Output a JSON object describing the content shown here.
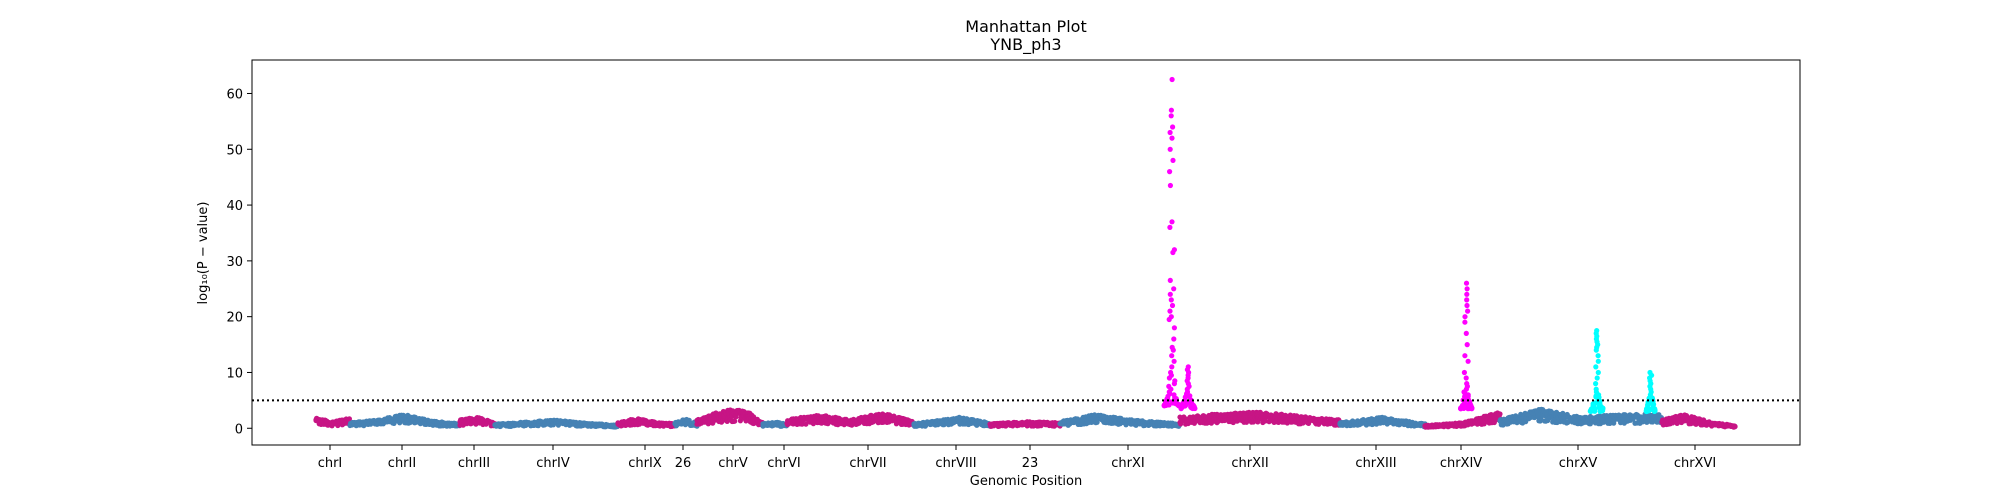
{
  "chart_data": {
    "type": "scatter",
    "title": "Manhattan Plot",
    "subtitle": "YNB_ph3",
    "xlabel": "Genomic Position",
    "ylabel": "log₁₀(P − value)",
    "ylim": [
      -3,
      66
    ],
    "yticks": [
      0,
      10,
      20,
      30,
      40,
      50,
      60
    ],
    "threshold": 5,
    "grid": false,
    "legend": "none",
    "colors": {
      "steel": "#4682b4",
      "crimson": "#c71585",
      "magenta": "#ff00ff",
      "cyan": "#00ffff",
      "threshold_line": "#000000"
    },
    "x_tick_labels": [
      "chrI",
      "chrII",
      "chrIII",
      "chrIV",
      "chrIX",
      "26",
      "chrV",
      "chrVI",
      "chrVII",
      "chrVIII",
      "23",
      "chrXI",
      "chrXII",
      "chrXIII",
      "chrXIV",
      "chrXV",
      "chrXVI"
    ],
    "segments": [
      {
        "label": "chrI",
        "color": "crimson",
        "profile": [
          [
            0,
            1.8
          ],
          [
            0.5,
            1.2
          ],
          [
            1,
            1.8
          ]
        ]
      },
      {
        "label": "chrII",
        "color": "steel",
        "profile": [
          [
            0,
            1.0
          ],
          [
            0.25,
            1.5
          ],
          [
            0.5,
            2.5
          ],
          [
            0.75,
            1.3
          ],
          [
            1,
            0.8
          ]
        ]
      },
      {
        "label": "chrIII",
        "color": "crimson",
        "profile": [
          [
            0,
            1.5
          ],
          [
            0.5,
            2.0
          ],
          [
            1,
            1.0
          ]
        ]
      },
      {
        "label": "chrIV",
        "color": "steel",
        "profile": [
          [
            0,
            0.8
          ],
          [
            0.3,
            1.2
          ],
          [
            0.5,
            1.5
          ],
          [
            0.75,
            0.9
          ],
          [
            1,
            0.6
          ]
        ]
      },
      {
        "label": "chrIX",
        "color": "crimson",
        "profile": [
          [
            0,
            1.0
          ],
          [
            0.3,
            1.8
          ],
          [
            0.6,
            1.2
          ],
          [
            1,
            0.8
          ]
        ]
      },
      {
        "label": "26",
        "color": "steel",
        "profile": [
          [
            0,
            1.0
          ],
          [
            0.5,
            1.8
          ],
          [
            1,
            0.9
          ]
        ]
      },
      {
        "label": "chrV",
        "color": "crimson",
        "profile": [
          [
            0,
            1.5
          ],
          [
            0.3,
            2.8
          ],
          [
            0.55,
            3.5
          ],
          [
            0.8,
            2.8
          ],
          [
            1,
            1.0
          ]
        ]
      },
      {
        "label": "chrVI",
        "color": "steel",
        "profile": [
          [
            0,
            0.8
          ],
          [
            0.5,
            1.2
          ],
          [
            1,
            0.7
          ]
        ]
      },
      {
        "label": "chrVII",
        "color": "crimson",
        "profile": [
          [
            0,
            1.5
          ],
          [
            0.25,
            2.5
          ],
          [
            0.5,
            1.5
          ],
          [
            0.75,
            2.8
          ],
          [
            1,
            1.2
          ]
        ]
      },
      {
        "label": "chrVIII",
        "color": "steel",
        "profile": [
          [
            0,
            0.8
          ],
          [
            0.6,
            2.0
          ],
          [
            1,
            1.0
          ]
        ]
      },
      {
        "label": "23",
        "color": "crimson",
        "profile": [
          [
            0,
            0.8
          ],
          [
            0.5,
            1.2
          ],
          [
            1,
            1.0
          ]
        ]
      },
      {
        "label": "chrXI",
        "color": "steel",
        "profile": [
          [
            0,
            1.2
          ],
          [
            0.3,
            2.5
          ],
          [
            0.6,
            1.5
          ],
          [
            1,
            0.8
          ]
        ]
      },
      {
        "label": "chrXII",
        "color": "crimson",
        "profile": [
          [
            0,
            2.0
          ],
          [
            0.2,
            2.5
          ],
          [
            0.5,
            3.0
          ],
          [
            0.8,
            2.0
          ],
          [
            1,
            1.5
          ]
        ]
      },
      {
        "label": "chrXIII",
        "color": "steel",
        "profile": [
          [
            0,
            1.0
          ],
          [
            0.5,
            2.0
          ],
          [
            1,
            0.8
          ]
        ]
      },
      {
        "label": "chrXIV",
        "color": "crimson",
        "profile": [
          [
            0,
            0.5
          ],
          [
            0.5,
            1.0
          ],
          [
            1,
            3.0
          ]
        ]
      },
      {
        "label": "chrXV",
        "color": "steel",
        "profile": [
          [
            0,
            1.5
          ],
          [
            0.25,
            3.5
          ],
          [
            0.5,
            2.0
          ],
          [
            0.75,
            2.5
          ],
          [
            1,
            2.5
          ]
        ]
      },
      {
        "label": "chrXVI",
        "color": "crimson",
        "profile": [
          [
            0,
            1.5
          ],
          [
            0.3,
            2.5
          ],
          [
            0.7,
            1.0
          ],
          [
            1,
            0.5
          ]
        ]
      }
    ],
    "peaks": [
      {
        "segment": "chrXI",
        "at": 0.93,
        "color": "magenta",
        "width": 0.55,
        "bottom": 5.5,
        "y": [
          62.5,
          57,
          56,
          54,
          53,
          52,
          50,
          48,
          46,
          43.5,
          37,
          36,
          32,
          31.5,
          26.5,
          25,
          24,
          23,
          22,
          21,
          20,
          19.5,
          18,
          16,
          14.5,
          14,
          13,
          12,
          11,
          10,
          9.5,
          9,
          8.5,
          8,
          7.5,
          7,
          6.5,
          6
        ]
      },
      {
        "segment": "chrXII",
        "at": 0.05,
        "color": "magenta",
        "width": 0.5,
        "bottom": 5.0,
        "y": [
          11.0,
          10.5,
          10,
          9.5,
          9,
          8.5,
          8,
          7.5,
          7,
          6.5,
          6,
          5.8
        ]
      },
      {
        "segment": "chrXIV",
        "at": 0.55,
        "color": "magenta",
        "width": 0.4,
        "bottom": 5.0,
        "y": [
          26,
          25,
          24,
          23,
          22,
          21,
          20,
          19,
          17,
          15,
          13,
          12,
          10,
          9,
          8,
          7.5,
          7,
          6.5,
          6,
          5.5
        ]
      },
      {
        "segment": "chrXV",
        "at": 0.6,
        "color": "cyan",
        "width": 0.5,
        "bottom": 4.5,
        "y": [
          17.5,
          17,
          16.5,
          16,
          15.5,
          15,
          14.5,
          14,
          13,
          12,
          11,
          10,
          9,
          8,
          7,
          6.5,
          6,
          5.5
        ]
      },
      {
        "segment": "chrXV",
        "at": 0.93,
        "color": "cyan",
        "width": 0.3,
        "bottom": 4.5,
        "y": [
          10,
          9.5,
          9,
          8.5,
          8,
          7.5,
          7,
          6.5,
          6
        ]
      }
    ]
  }
}
